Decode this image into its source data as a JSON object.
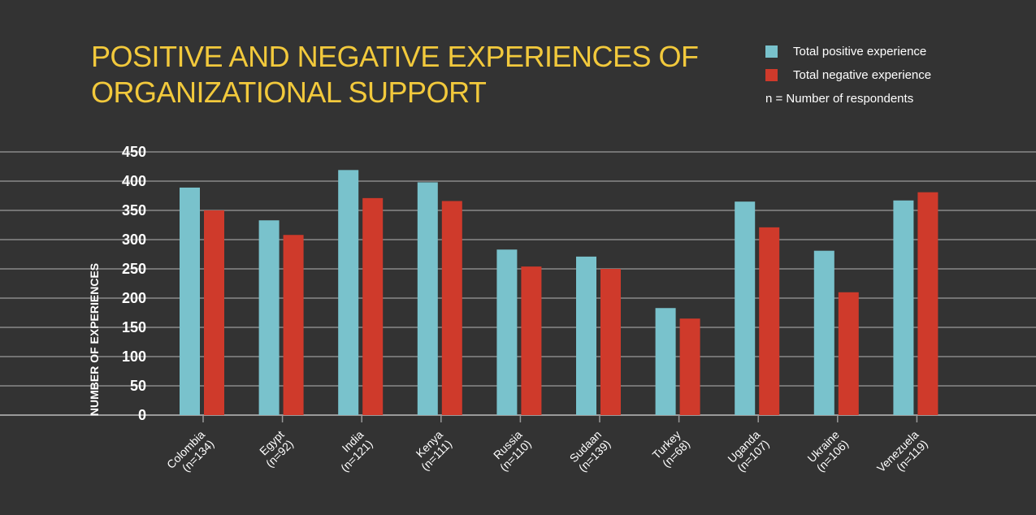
{
  "title": {
    "line1": "POSITIVE AND NEGATIVE EXPERIENCES OF",
    "line2": "ORGANIZATIONAL SUPPORT"
  },
  "legend": {
    "positive": "Total positive experience",
    "negative": "Total negative experience",
    "note": "n = Number of respondents"
  },
  "colors": {
    "positive": "#79c2cc",
    "negative": "#cf3a2b",
    "background": "#333333",
    "title": "#f2c93c",
    "grid": "#8a8a8a"
  },
  "chart_data": {
    "type": "bar",
    "title": "POSITIVE AND NEGATIVE EXPERIENCES OF ORGANIZATIONAL SUPPORT",
    "xlabel": "",
    "ylabel": "NUMBER OF EXPERIENCES",
    "ylim": [
      0,
      450
    ],
    "yticks": [
      0,
      50,
      100,
      150,
      200,
      250,
      300,
      350,
      400,
      450
    ],
    "grid": true,
    "legend_position": "top-right",
    "categories": [
      [
        "Colombia",
        "(n=134)"
      ],
      [
        "Egypt",
        "(n=92)"
      ],
      [
        "India",
        "(n=121)"
      ],
      [
        "Kenya",
        "(n=111)"
      ],
      [
        "Russia",
        "(n=110)"
      ],
      [
        "Sudaan",
        "(n=139)"
      ],
      [
        "Turkey",
        "(n=68)"
      ],
      [
        "Uganda",
        "(n=107)"
      ],
      [
        "Ukraine",
        "(n=106)"
      ],
      [
        "Venezuela",
        "(n=119)"
      ]
    ],
    "series": [
      {
        "name": "Total positive experience",
        "values": [
          389,
          333,
          419,
          398,
          283,
          271,
          183,
          365,
          281,
          367
        ]
      },
      {
        "name": "Total negative experience",
        "values": [
          350,
          308,
          371,
          366,
          254,
          250,
          165,
          321,
          210,
          381
        ]
      }
    ]
  }
}
